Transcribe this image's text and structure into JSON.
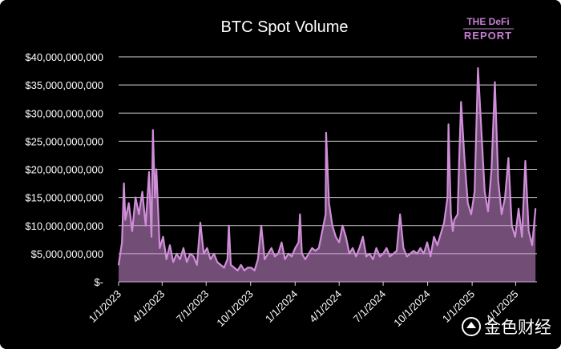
{
  "branding": {
    "logo_line1": "THE DeFi",
    "logo_line2": "REPORT",
    "watermark": "金色财经"
  },
  "colors": {
    "background": "#000000",
    "series": "#d08ed8",
    "text": "#ffffff",
    "gridline": "#d9d9d9",
    "logo": "#c47fd0"
  },
  "chart_data": {
    "type": "area",
    "title": "BTC Spot Volume",
    "xlabel": "",
    "ylabel": "",
    "x_tick_labels": [
      "1/1/2023",
      "4/1/2023",
      "7/1/2023",
      "10/1/2023",
      "1/1/2024",
      "4/1/2024",
      "7/1/2024",
      "10/1/2024",
      "1/1/2025",
      "4/1/2025"
    ],
    "y_tick_labels": [
      "$-",
      "$5,000,000,000",
      "$10,000,000,000",
      "$15,000,000,000",
      "$20,000,000,000",
      "$25,000,000,000",
      "$30,000,000,000",
      "$35,000,000,000",
      "$40,000,000,000"
    ],
    "ylim": [
      0,
      40000000000
    ],
    "xlim": [
      "2023-01-01",
      "2025-05-15"
    ],
    "grid": true,
    "series": [
      {
        "values_unit": "USD",
        "x": [
          "2023-01-01",
          "2023-01-08",
          "2023-01-12",
          "2023-01-15",
          "2023-01-22",
          "2023-01-29",
          "2023-02-05",
          "2023-02-12",
          "2023-02-19",
          "2023-02-26",
          "2023-03-05",
          "2023-03-10",
          "2023-03-13",
          "2023-03-17",
          "2023-03-20",
          "2023-03-27",
          "2023-04-03",
          "2023-04-10",
          "2023-04-17",
          "2023-04-24",
          "2023-05-01",
          "2023-05-08",
          "2023-05-15",
          "2023-05-22",
          "2023-05-29",
          "2023-06-05",
          "2023-06-12",
          "2023-06-19",
          "2023-06-26",
          "2023-07-03",
          "2023-07-10",
          "2023-07-17",
          "2023-07-24",
          "2023-07-31",
          "2023-08-07",
          "2023-08-14",
          "2023-08-17",
          "2023-08-21",
          "2023-08-28",
          "2023-09-04",
          "2023-09-11",
          "2023-09-18",
          "2023-09-25",
          "2023-10-02",
          "2023-10-09",
          "2023-10-16",
          "2023-10-23",
          "2023-10-30",
          "2023-11-06",
          "2023-11-13",
          "2023-11-20",
          "2023-11-27",
          "2023-12-04",
          "2023-12-11",
          "2023-12-18",
          "2023-12-25",
          "2024-01-01",
          "2024-01-08",
          "2024-01-11",
          "2024-01-15",
          "2024-01-22",
          "2024-01-29",
          "2024-02-05",
          "2024-02-12",
          "2024-02-19",
          "2024-02-26",
          "2024-03-04",
          "2024-03-05",
          "2024-03-11",
          "2024-03-18",
          "2024-03-25",
          "2024-04-01",
          "2024-04-08",
          "2024-04-15",
          "2024-04-22",
          "2024-04-29",
          "2024-05-06",
          "2024-05-13",
          "2024-05-20",
          "2024-05-27",
          "2024-06-03",
          "2024-06-10",
          "2024-06-17",
          "2024-06-24",
          "2024-07-01",
          "2024-07-08",
          "2024-07-15",
          "2024-07-22",
          "2024-07-29",
          "2024-08-05",
          "2024-08-12",
          "2024-08-19",
          "2024-08-26",
          "2024-09-02",
          "2024-09-09",
          "2024-09-16",
          "2024-09-23",
          "2024-09-30",
          "2024-10-07",
          "2024-10-14",
          "2024-10-21",
          "2024-10-28",
          "2024-11-04",
          "2024-11-11",
          "2024-11-13",
          "2024-11-18",
          "2024-11-22",
          "2024-11-25",
          "2024-12-02",
          "2024-12-05",
          "2024-12-09",
          "2024-12-16",
          "2024-12-23",
          "2024-12-30",
          "2025-01-06",
          "2025-01-13",
          "2025-01-20",
          "2025-01-27",
          "2025-02-03",
          "2025-02-10",
          "2025-02-17",
          "2025-02-24",
          "2025-03-03",
          "2025-03-10",
          "2025-03-17",
          "2025-03-24",
          "2025-03-31",
          "2025-04-07",
          "2025-04-14",
          "2025-04-21",
          "2025-04-28",
          "2025-05-05",
          "2025-05-12"
        ],
        "values": [
          3000000000,
          7000000000,
          17500000000,
          11000000000,
          14000000000,
          9000000000,
          15000000000,
          12000000000,
          16000000000,
          10000000000,
          19500000000,
          8000000000,
          27000000000,
          15000000000,
          20000000000,
          6000000000,
          8000000000,
          4000000000,
          6500000000,
          3500000000,
          5000000000,
          4000000000,
          6000000000,
          3500000000,
          5000000000,
          4500000000,
          3000000000,
          10500000000,
          5000000000,
          6000000000,
          4000000000,
          5000000000,
          3500000000,
          3000000000,
          2500000000,
          4000000000,
          10000000000,
          3000000000,
          2500000000,
          2000000000,
          3000000000,
          2000000000,
          2500000000,
          2500000000,
          2000000000,
          4000000000,
          10000000000,
          4000000000,
          5000000000,
          6000000000,
          4500000000,
          5000000000,
          7000000000,
          4000000000,
          5000000000,
          4500000000,
          6000000000,
          7000000000,
          12000000000,
          5000000000,
          4000000000,
          5000000000,
          6000000000,
          5500000000,
          6000000000,
          9000000000,
          12000000000,
          26500000000,
          14000000000,
          10000000000,
          8000000000,
          7000000000,
          10000000000,
          8000000000,
          5000000000,
          6000000000,
          4500000000,
          6000000000,
          8000000000,
          4500000000,
          5000000000,
          4000000000,
          6000000000,
          4500000000,
          5000000000,
          6000000000,
          4500000000,
          5000000000,
          5500000000,
          12000000000,
          6000000000,
          4500000000,
          5000000000,
          5500000000,
          5000000000,
          6000000000,
          5000000000,
          7000000000,
          4500000000,
          8000000000,
          6500000000,
          8500000000,
          10500000000,
          15000000000,
          28000000000,
          12000000000,
          9000000000,
          11000000000,
          12000000000,
          21000000000,
          32000000000,
          22000000000,
          14000000000,
          12000000000,
          16000000000,
          38000000000,
          27000000000,
          16000000000,
          12500000000,
          20000000000,
          35500000000,
          18000000000,
          12000000000,
          15000000000,
          22000000000,
          10000000000,
          8000000000,
          13000000000,
          8000000000,
          21500000000,
          9000000000,
          6500000000,
          13000000000
        ]
      }
    ]
  }
}
